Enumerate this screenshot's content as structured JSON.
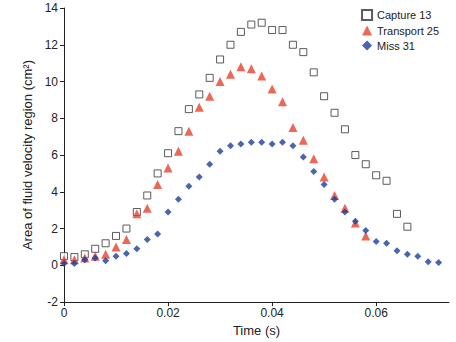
{
  "chart_data": {
    "type": "scatter",
    "x_label": "Time (s)",
    "y_label": "Area of fluid velocity region (cm²)",
    "xlim": [
      0,
      0.074
    ],
    "xticks": [
      0,
      0.02,
      0.04,
      0.06
    ],
    "ylim": [
      -2,
      14
    ],
    "yticks": [
      -2,
      0,
      2,
      4,
      6,
      8,
      10,
      12,
      14
    ],
    "grid": false,
    "legend": "top-right",
    "series": [
      {
        "name": "Capture 13",
        "color": "#333333",
        "marker": "square_open",
        "x": [
          0,
          0.002,
          0.004,
          0.006,
          0.008,
          0.01,
          0.012,
          0.014,
          0.016,
          0.018,
          0.02,
          0.022,
          0.024,
          0.026,
          0.028,
          0.03,
          0.032,
          0.034,
          0.036,
          0.038,
          0.04,
          0.042,
          0.044,
          0.046,
          0.048,
          0.05,
          0.052,
          0.054,
          0.056,
          0.058,
          0.06,
          0.062,
          0.064,
          0.066
        ],
        "values": [
          0.5,
          0.45,
          0.6,
          0.9,
          1.2,
          1.6,
          2.0,
          2.9,
          3.8,
          5.0,
          6.1,
          7.3,
          8.5,
          9.3,
          10.2,
          11.2,
          12.0,
          12.7,
          13.1,
          13.2,
          12.8,
          12.8,
          12.0,
          11.6,
          10.5,
          9.2,
          8.3,
          7.4,
          6.0,
          5.5,
          4.9,
          4.6,
          2.8,
          2.1
        ]
      },
      {
        "name": "Transport 25",
        "color": "#e8412c",
        "marker": "triangle",
        "x": [
          0,
          0.002,
          0.004,
          0.006,
          0.008,
          0.01,
          0.012,
          0.014,
          0.016,
          0.018,
          0.02,
          0.022,
          0.024,
          0.026,
          0.028,
          0.03,
          0.032,
          0.034,
          0.036,
          0.038,
          0.04,
          0.042,
          0.044,
          0.046,
          0.048,
          0.05,
          0.052,
          0.054,
          0.056,
          0.058
        ],
        "values": [
          0.3,
          0.3,
          0.4,
          0.5,
          0.6,
          1.0,
          1.4,
          2.8,
          3.1,
          4.4,
          5.3,
          6.2,
          7.3,
          8.6,
          9.2,
          10.0,
          10.4,
          10.8,
          10.7,
          10.3,
          9.6,
          8.9,
          7.5,
          6.8,
          5.8,
          4.8,
          3.8,
          3.1,
          2.3,
          1.6
        ]
      },
      {
        "name": "Miss 31",
        "color": "#1b3f99",
        "marker": "diamond",
        "x": [
          0,
          0.002,
          0.004,
          0.006,
          0.008,
          0.01,
          0.012,
          0.014,
          0.016,
          0.018,
          0.02,
          0.022,
          0.024,
          0.026,
          0.028,
          0.03,
          0.032,
          0.034,
          0.036,
          0.038,
          0.04,
          0.042,
          0.044,
          0.046,
          0.048,
          0.05,
          0.052,
          0.054,
          0.056,
          0.058,
          0.06,
          0.062,
          0.064,
          0.066,
          0.068,
          0.07,
          0.072
        ],
        "values": [
          0.1,
          0.1,
          0.3,
          0.4,
          0.25,
          0.5,
          0.65,
          0.9,
          1.4,
          1.7,
          2.9,
          3.6,
          4.3,
          4.8,
          5.5,
          6.2,
          6.5,
          6.6,
          6.7,
          6.7,
          6.6,
          6.7,
          6.5,
          5.9,
          5.1,
          4.4,
          3.6,
          2.9,
          2.4,
          1.9,
          1.3,
          1.2,
          0.8,
          0.6,
          0.5,
          0.2,
          0.15
        ]
      }
    ]
  }
}
